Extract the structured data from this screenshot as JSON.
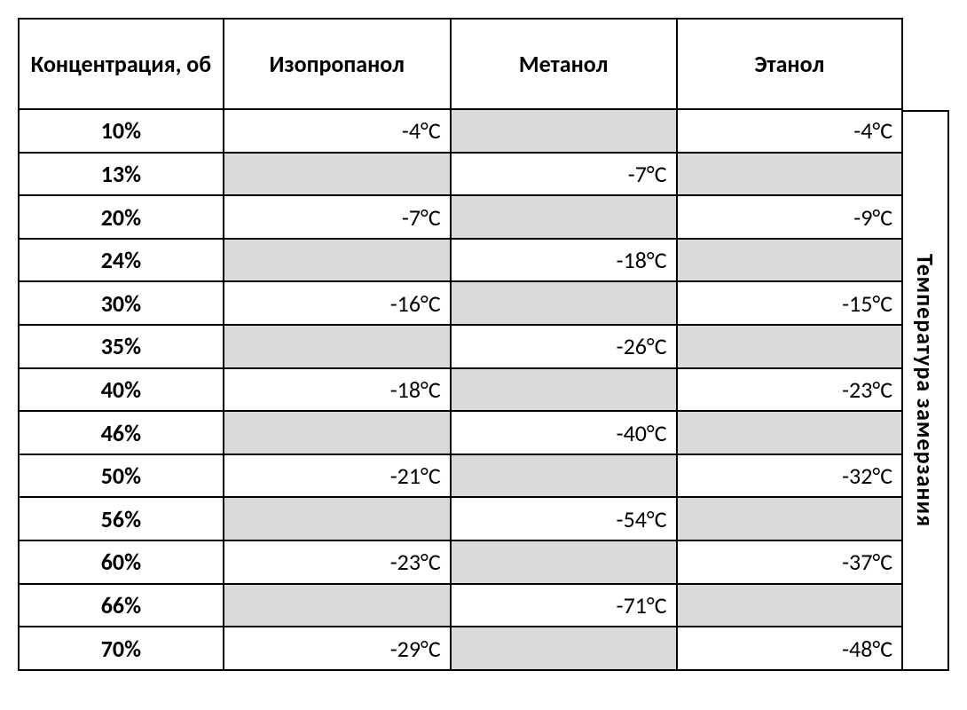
{
  "table": {
    "headers": {
      "concentration": "Концентрация, об",
      "isopropanol": "Изопропанол",
      "methanol": "Метанол",
      "ethanol": "Этанол"
    },
    "side_label": "Температура замерзания",
    "rows": [
      {
        "conc": "10%",
        "isopropanol": "-4°C",
        "methanol": "",
        "ethanol": "-4°C"
      },
      {
        "conc": "13%",
        "isopropanol": "",
        "methanol": "-7°C",
        "ethanol": ""
      },
      {
        "conc": "20%",
        "isopropanol": "-7°C",
        "methanol": "",
        "ethanol": "-9°C"
      },
      {
        "conc": "24%",
        "isopropanol": "",
        "methanol": "-18°C",
        "ethanol": ""
      },
      {
        "conc": "30%",
        "isopropanol": "-16°C",
        "methanol": "",
        "ethanol": "-15°C"
      },
      {
        "conc": "35%",
        "isopropanol": "",
        "methanol": "-26°C",
        "ethanol": ""
      },
      {
        "conc": "40%",
        "isopropanol": "-18°C",
        "methanol": "",
        "ethanol": "-23°C"
      },
      {
        "conc": "46%",
        "isopropanol": "",
        "methanol": "-40°C",
        "ethanol": ""
      },
      {
        "conc": "50%",
        "isopropanol": "-21°C",
        "methanol": "",
        "ethanol": "-32°C"
      },
      {
        "conc": "56%",
        "isopropanol": "",
        "methanol": "-54°C",
        "ethanol": ""
      },
      {
        "conc": "60%",
        "isopropanol": "-23°C",
        "methanol": "",
        "ethanol": "-37°C"
      },
      {
        "conc": "66%",
        "isopropanol": "",
        "methanol": "-71°C",
        "ethanol": ""
      },
      {
        "conc": "70%",
        "isopropanol": "-29°C",
        "methanol": "",
        "ethanol": "-48°C"
      }
    ],
    "empty_cell_color": "#d9d9d9",
    "border_color": "#000000",
    "font_family": "Calibri",
    "header_fontsize": 26,
    "body_fontsize": 26
  }
}
